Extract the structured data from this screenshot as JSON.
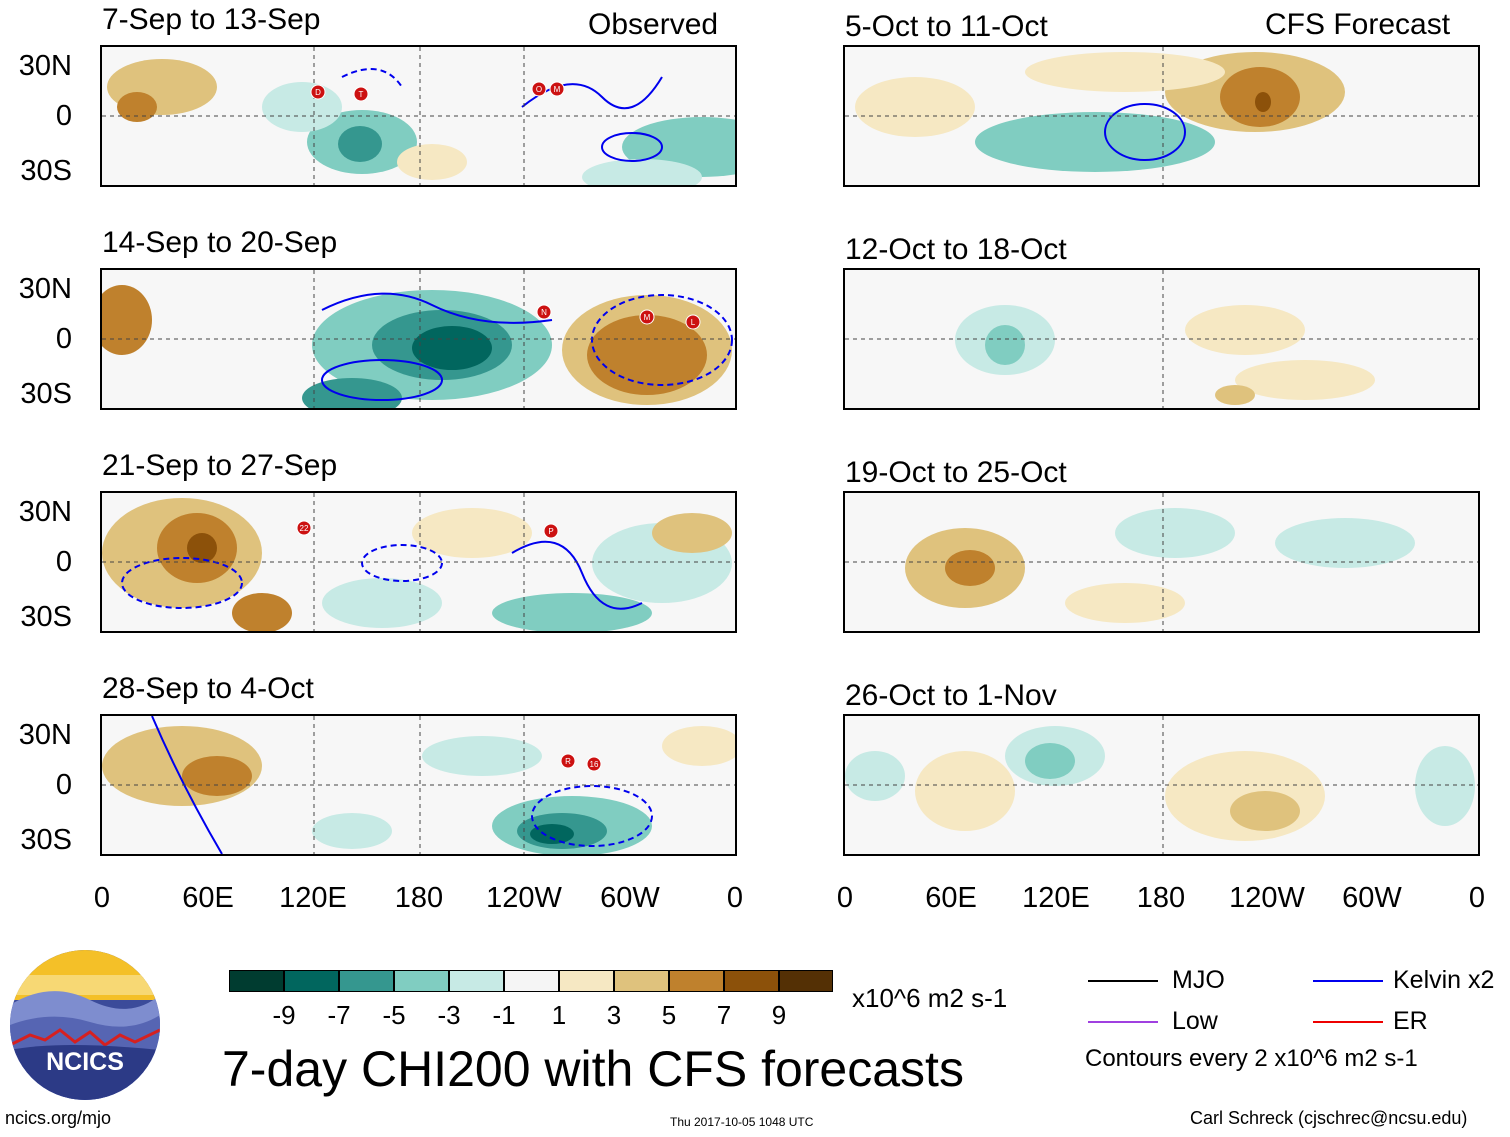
{
  "headers": {
    "left": "Observed",
    "right": "CFS Forecast"
  },
  "y_ticks": [
    "30N",
    "0",
    "30S"
  ],
  "x_ticks": [
    "0",
    "60E",
    "120E",
    "180",
    "120W",
    "60W",
    "0"
  ],
  "panels_left": [
    {
      "title": "7-Sep to 13-Sep",
      "storms": [
        "D",
        "T",
        "O",
        "M"
      ]
    },
    {
      "title": "14-Sep to 20-Sep",
      "storms": [
        "N",
        "M",
        "L"
      ]
    },
    {
      "title": "21-Sep to 27-Sep",
      "storms": [
        "22",
        "P"
      ]
    },
    {
      "title": "28-Sep to 4-Oct",
      "storms": [
        "R",
        "16"
      ]
    }
  ],
  "panels_right": [
    {
      "title": "5-Oct to 11-Oct"
    },
    {
      "title": "12-Oct to 18-Oct"
    },
    {
      "title": "19-Oct to 25-Oct"
    },
    {
      "title": "26-Oct to 1-Nov"
    }
  ],
  "colorbar": {
    "colors": [
      "#003c30",
      "#01665e",
      "#35978f",
      "#80cdc1",
      "#c7eae5",
      "#f5f5f5",
      "#f6e8c3",
      "#dfc27d",
      "#bf812d",
      "#8c510a",
      "#543005"
    ],
    "labels": [
      "-9",
      "-7",
      "-5",
      "-3",
      "-1",
      "1",
      "3",
      "5",
      "7",
      "9"
    ],
    "units": "x10^6 m2 s-1"
  },
  "legend": {
    "items": [
      {
        "label": "MJO",
        "color": "#000000"
      },
      {
        "label": "Kelvin x2",
        "color": "#0000ee"
      },
      {
        "label": "Low",
        "color": "#a040e0"
      },
      {
        "label": "ER",
        "color": "#ee0000"
      }
    ],
    "contours_note": "Contours every 2 x10^6 m2 s-1"
  },
  "logo_text": "NCICS",
  "main_title": "7-day CHI200 with CFS forecasts",
  "footer": {
    "left": "ncics.org/mjo",
    "center": "Thu 2017-10-05 1048 UTC",
    "right": "Carl Schreck (cjschrec@ncsu.edu)"
  }
}
